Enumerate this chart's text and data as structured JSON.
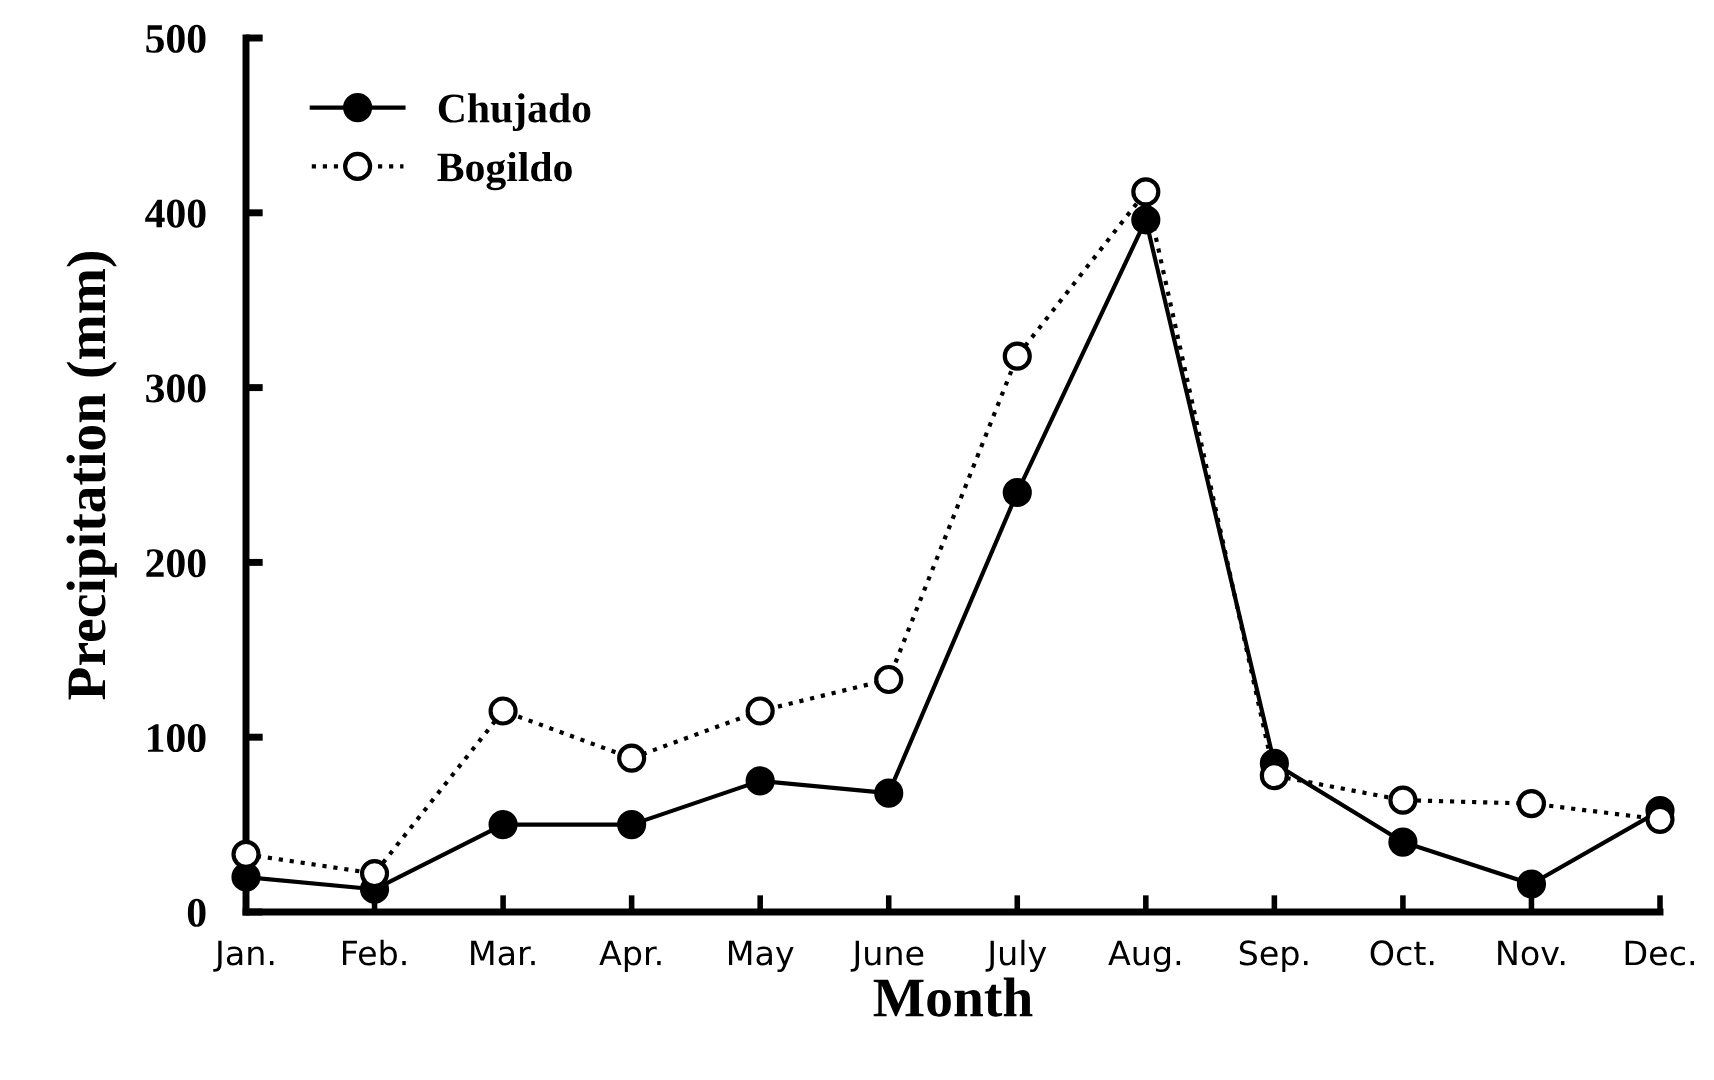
{
  "chart_data": {
    "type": "line",
    "xlabel": "Month",
    "ylabel": "Precipitation (mm)",
    "categories": [
      "Jan.",
      "Feb.",
      "Mar.",
      "Apr.",
      "May",
      "June",
      "July",
      "Aug.",
      "Sep.",
      "Oct.",
      "Nov.",
      "Dec."
    ],
    "series": [
      {
        "name": "Chujado",
        "color": "#000000",
        "marker": "circle",
        "line_style": "solid",
        "values": [
          20,
          13,
          50,
          50,
          75,
          68,
          240,
          396,
          85,
          40,
          16,
          58
        ]
      },
      {
        "name": "Bogildo",
        "color": "#000000",
        "marker": "circle",
        "line_style": "dotted",
        "values": [
          33,
          22,
          115,
          88,
          115,
          133,
          318,
          412,
          78,
          64,
          62,
          53
        ]
      }
    ],
    "ylim": [
      0,
      500
    ],
    "yticks": [
      0,
      100,
      200,
      300,
      400,
      500
    ],
    "grid": false,
    "legend": "top left"
  }
}
